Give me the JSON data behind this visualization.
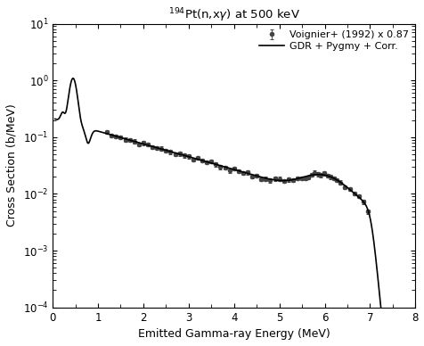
{
  "title": "$^{194}$Pt(n,x$\\gamma$) at 500 keV",
  "xlabel": "Emitted Gamma-ray Energy (MeV)",
  "ylabel": "Cross Section (b/MeV)",
  "xlim": [
    0,
    8
  ],
  "ylim_log": [
    -4,
    1
  ],
  "legend_line": "GDR + Pygmy + Corr.",
  "legend_data": "Voignier+ (1992) x 0.87",
  "line_color": "#000000",
  "data_color": "#444444",
  "line_width": 1.2,
  "marker_size": 3.0
}
